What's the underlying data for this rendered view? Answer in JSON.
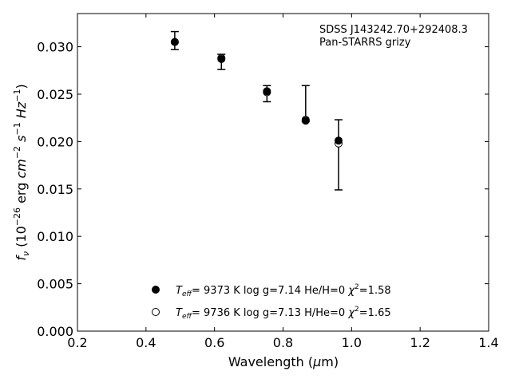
{
  "chart_data": {
    "type": "scatter",
    "annotations": [
      "SDSS J143242.70+292408.3",
      "Pan-STARRS grizy"
    ],
    "xlabel": "Wavelength (μm)",
    "ylabel": "fν (10⁻²⁶ erg cm⁻² s⁻¹ Hz⁻¹)",
    "xlim": [
      0.2,
      1.4
    ],
    "ylim": [
      0.0,
      0.0335
    ],
    "xticks": [
      "0.2",
      "0.4",
      "0.6",
      "0.8",
      "1.0",
      "1.2",
      "1.4"
    ],
    "yticks": [
      "0.000",
      "0.005",
      "0.010",
      "0.015",
      "0.020",
      "0.025",
      "0.030"
    ],
    "grid": false,
    "legend_position": "bottom-center",
    "observed": {
      "x": [
        0.484,
        0.62,
        0.753,
        0.866,
        0.962
      ],
      "y": [
        0.0306,
        0.0285,
        0.025,
        0.0225,
        0.0186
      ],
      "yerr_low": [
        0.0308,
        0.0289,
        0.0255,
        0.0221,
        0.0186
      ],
      "yerr_high": [
        0.0316,
        0.0292,
        0.0259,
        0.0259,
        0.0223
      ],
      "yerr_bottom": [
        0.0297,
        0.0276,
        0.0242,
        0.0221,
        0.0149
      ]
    },
    "series": [
      {
        "name": "T_eff= 9373 K log g=7.14 He/H=0 χ²=1.58",
        "label_parts": {
          "teff": "9373 K",
          "logg": "log g=7.14",
          "comp": "He/H=0",
          "chi2": "=1.58"
        },
        "marker": "filled-circle",
        "x": [
          0.484,
          0.62,
          0.753,
          0.866,
          0.962
        ],
        "y": [
          0.0305,
          0.0287,
          0.0253,
          0.0222,
          0.0201
        ]
      },
      {
        "name": "T_eff= 9736 K log g=7.13 H/He=0 χ²=1.65",
        "label_parts": {
          "teff": "9736 K",
          "logg": "log g=7.13",
          "comp": "H/He=0",
          "chi2": "=1.65"
        },
        "marker": "open-circle",
        "x": [
          0.484,
          0.62,
          0.753,
          0.866,
          0.962
        ],
        "y": [
          0.0305,
          0.0288,
          0.0252,
          0.0223,
          0.0198
        ]
      }
    ]
  }
}
